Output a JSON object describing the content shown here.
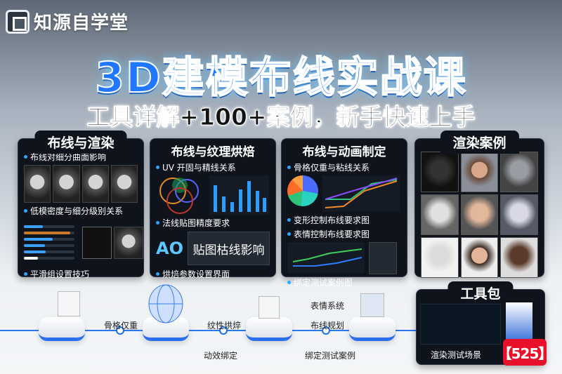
{
  "brand": {
    "name": "知源自学堂"
  },
  "title": "3D建模布线实战课",
  "subtitle": "工具详解+100+案例，新手快速上手",
  "panels": [
    {
      "title": "布线与渲染",
      "items": [
        "布线对细分曲面影响",
        "低模密度与细分级别关系",
        "平滑组设置技巧"
      ]
    },
    {
      "title": "布线与纹理烘焙",
      "items": [
        "UV 开固与精线关系",
        "法线贴图精度要求",
        "烘焙参数设置界面"
      ],
      "ao_label": "AO",
      "ao_caption": "贴图枯线影响"
    },
    {
      "title": "布线与动画制定",
      "items": [
        "骨格仅重与粘线关系",
        "变形控制布线要求图",
        "表情控制布线要求图",
        "绑定测试案例图"
      ]
    },
    {
      "title": "渲染案例"
    }
  ],
  "toolkit": {
    "title": "工具包",
    "caption": "渲染测试场景",
    "badge": "【525】"
  },
  "flow": {
    "labels": [
      "骨格仅重",
      "纹性烘焠",
      "表情系统",
      "布线规划",
      "动效绑定",
      "绑定测试案例"
    ]
  },
  "colors": {
    "accent": "#1f78ff",
    "badge": "#e8102a",
    "panel": "#0f141c"
  }
}
